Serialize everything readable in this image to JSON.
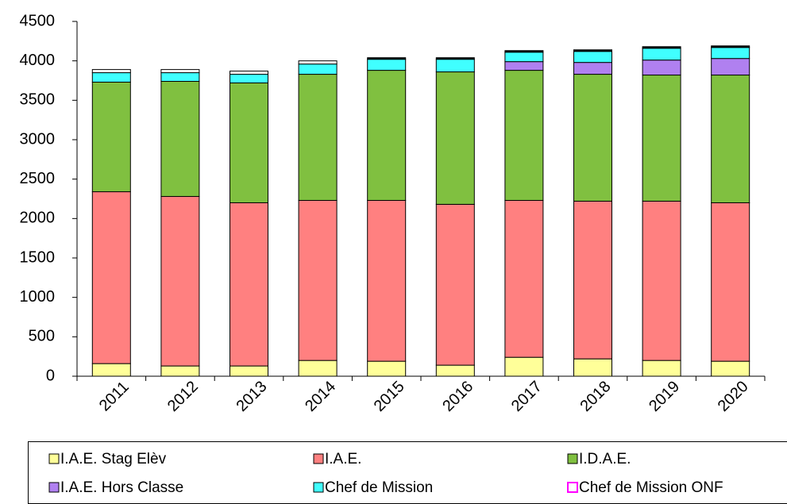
{
  "chart_data": {
    "type": "stacked_bar",
    "categories": [
      "2011",
      "2012",
      "2013",
      "2014",
      "2015",
      "2016",
      "2017",
      "2018",
      "2019",
      "2020"
    ],
    "series": [
      {
        "name": "I.A.E. Stag Elèv",
        "color": "#ffff99",
        "values": [
          160,
          130,
          130,
          200,
          190,
          140,
          240,
          220,
          200,
          190
        ]
      },
      {
        "name": "I.A.E.",
        "color": "#ff8080",
        "values": [
          2180,
          2150,
          2070,
          2030,
          2040,
          2040,
          1990,
          2000,
          2020,
          2010
        ]
      },
      {
        "name": "I.D.A.E.",
        "color": "#80c040",
        "values": [
          1390,
          1460,
          1520,
          1600,
          1650,
          1680,
          1650,
          1610,
          1600,
          1620
        ]
      },
      {
        "name": "I.A.E. Hors Classe",
        "color": "#b080f0",
        "values": [
          0,
          0,
          0,
          0,
          0,
          0,
          110,
          150,
          190,
          210
        ]
      },
      {
        "name": "Chef de Mission",
        "color": "#40ffff",
        "values": [
          120,
          110,
          110,
          130,
          140,
          160,
          120,
          140,
          150,
          140
        ]
      },
      {
        "name": "Chef de Mission ONF",
        "color": "#ffffff",
        "values": [
          40,
          40,
          40,
          40,
          20,
          20,
          20,
          20,
          20,
          20
        ]
      }
    ],
    "ylim": [
      0,
      4500
    ],
    "yticks": [
      0,
      500,
      1000,
      1500,
      2000,
      2500,
      3000,
      3500,
      4000,
      4500
    ]
  }
}
